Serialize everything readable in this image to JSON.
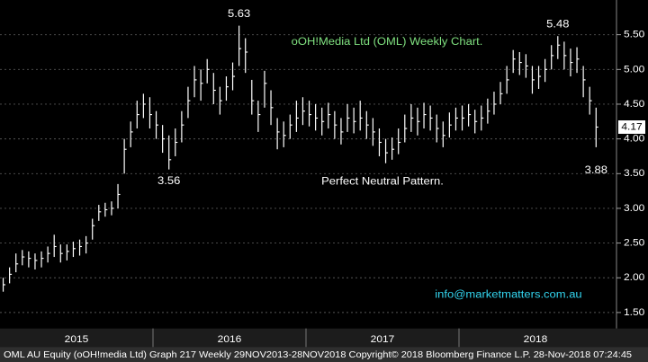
{
  "chart_data": {
    "type": "ohlc",
    "title": "oOH!Media Ltd (OML) Weekly Chart.",
    "annotation": "Perfect Neutral Pattern.",
    "source": "info@marketmatters.com.au",
    "footer": "OML AU Equity (oOH!media Ltd) Graph 217  Weekly 29NOV2013-28NOV2018 Copyright© 2018 Bloomberg Finance L.P. 28-Nov-2018 07:24:45",
    "categories": [
      "2015",
      "2016",
      "2017",
      "2018"
    ],
    "ylim": [
      1.27,
      6.0
    ],
    "yticks": [
      {
        "value": 1.5,
        "label": "1.50"
      },
      {
        "value": 2.0,
        "label": "2.00"
      },
      {
        "value": 2.5,
        "label": "2.50"
      },
      {
        "value": 3.0,
        "label": "3.00"
      },
      {
        "value": 3.5,
        "label": "3.50"
      },
      {
        "value": 4.0,
        "label": "4.00"
      },
      {
        "value": 4.5,
        "label": "4.50"
      },
      {
        "value": 5.0,
        "label": "5.00"
      },
      {
        "value": 5.5,
        "label": "5.50"
      }
    ],
    "grid": true,
    "color": "#ffffff",
    "series": {
      "high": [
        2.0,
        2.15,
        2.35,
        2.4,
        2.38,
        2.35,
        2.38,
        2.45,
        2.62,
        2.48,
        2.48,
        2.52,
        2.55,
        2.6,
        2.85,
        3.05,
        3.08,
        3.1,
        3.35,
        4.0,
        4.25,
        4.55,
        4.65,
        4.6,
        4.4,
        4.2,
        4.05,
        4.15,
        4.4,
        4.75,
        5.05,
        5.0,
        5.15,
        4.95,
        4.75,
        4.9,
        5.1,
        5.63,
        5.45,
        4.85,
        4.55,
        4.98,
        4.7,
        4.3,
        4.25,
        4.35,
        4.55,
        4.6,
        4.55,
        4.5,
        4.45,
        4.52,
        4.4,
        4.3,
        4.5,
        4.45,
        4.55,
        4.4,
        4.3,
        4.15,
        4.0,
        4.02,
        4.15,
        4.35,
        4.5,
        4.45,
        4.52,
        4.48,
        4.35,
        4.25,
        4.38,
        4.45,
        4.48,
        4.5,
        4.42,
        4.48,
        4.58,
        4.68,
        4.82,
        5.05,
        5.28,
        5.25,
        5.22,
        5.05,
        5.05,
        5.15,
        5.35,
        5.48,
        5.4,
        5.3,
        5.32,
        5.05,
        4.75,
        4.45
      ],
      "low": [
        1.8,
        1.92,
        2.08,
        2.18,
        2.15,
        2.12,
        2.15,
        2.22,
        2.3,
        2.22,
        2.25,
        2.3,
        2.32,
        2.35,
        2.55,
        2.82,
        2.88,
        2.9,
        3.0,
        3.5,
        3.88,
        4.15,
        4.3,
        4.15,
        4.0,
        3.8,
        3.56,
        3.75,
        3.95,
        4.3,
        4.6,
        4.55,
        4.8,
        4.5,
        4.35,
        4.55,
        4.7,
        5.05,
        4.95,
        4.35,
        4.1,
        4.45,
        4.2,
        3.85,
        3.88,
        4.0,
        4.1,
        4.2,
        4.18,
        4.12,
        4.05,
        4.15,
        4.0,
        3.92,
        4.1,
        4.08,
        4.12,
        4.0,
        3.9,
        3.75,
        3.65,
        3.7,
        3.78,
        3.95,
        4.1,
        4.05,
        4.15,
        4.12,
        3.95,
        3.88,
        4.02,
        4.12,
        4.12,
        4.18,
        4.08,
        4.12,
        4.22,
        4.35,
        4.5,
        4.65,
        4.95,
        4.92,
        4.88,
        4.65,
        4.72,
        4.82,
        5.0,
        5.15,
        5.0,
        4.9,
        4.95,
        4.6,
        4.35,
        3.88
      ],
      "close": [
        1.9,
        2.05,
        2.2,
        2.3,
        2.28,
        2.25,
        2.28,
        2.35,
        2.45,
        2.35,
        2.38,
        2.42,
        2.45,
        2.5,
        2.75,
        2.95,
        2.98,
        3.0,
        3.2,
        3.85,
        4.1,
        4.35,
        4.5,
        4.35,
        4.2,
        4.0,
        3.7,
        3.95,
        4.2,
        4.55,
        4.85,
        4.8,
        5.0,
        4.7,
        4.55,
        4.75,
        4.9,
        5.3,
        5.25,
        4.55,
        4.35,
        4.8,
        4.45,
        4.1,
        4.05,
        4.2,
        4.3,
        4.4,
        4.35,
        4.3,
        4.25,
        4.35,
        4.2,
        4.1,
        4.3,
        4.25,
        4.3,
        4.2,
        4.1,
        3.95,
        3.8,
        3.85,
        3.95,
        4.15,
        4.3,
        4.25,
        4.35,
        4.3,
        4.15,
        4.05,
        4.2,
        4.3,
        4.3,
        4.35,
        4.25,
        4.3,
        4.4,
        4.5,
        4.65,
        4.85,
        5.15,
        5.1,
        5.05,
        4.85,
        4.9,
        5.0,
        5.2,
        5.35,
        5.2,
        5.1,
        5.15,
        4.85,
        4.55,
        4.17
      ]
    }
  }
}
